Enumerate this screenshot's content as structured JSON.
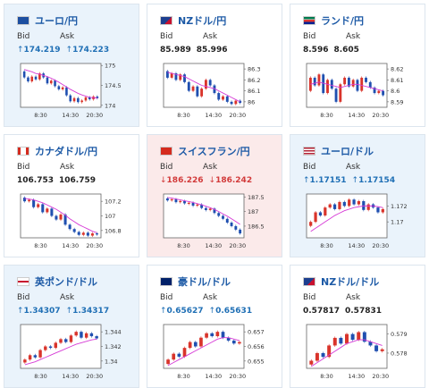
{
  "cards": [
    {
      "title": "ユーロ/円",
      "bid": "174.219",
      "ask": "174.223",
      "bid_dir": "up",
      "ask_dir": "up",
      "bg": "blue",
      "flag": "eu",
      "yticks": [
        "175",
        "174.5",
        "174"
      ],
      "ytick_vals": [
        175,
        174.5,
        174
      ],
      "ylim": [
        173.95,
        175.05
      ],
      "xticks": [
        "8:30",
        "14:30",
        "20:30"
      ],
      "candles": [
        [
          174.85,
          174.7
        ],
        [
          174.7,
          174.6
        ],
        [
          174.6,
          174.72
        ],
        [
          174.72,
          174.65
        ],
        [
          174.65,
          174.8
        ],
        [
          174.8,
          174.7
        ],
        [
          174.7,
          174.55
        ],
        [
          174.55,
          174.62
        ],
        [
          174.62,
          174.48
        ],
        [
          174.48,
          174.4
        ],
        [
          174.4,
          174.45
        ],
        [
          174.45,
          174.25
        ],
        [
          174.25,
          174.1
        ],
        [
          174.1,
          174.18
        ],
        [
          174.18,
          174.08
        ],
        [
          174.08,
          174.12
        ],
        [
          174.12,
          174.2
        ],
        [
          174.2,
          174.15
        ],
        [
          174.15,
          174.22
        ],
        [
          174.22,
          174.18
        ]
      ],
      "ma": [
        174.9,
        174.87,
        174.84,
        174.8,
        174.78,
        174.75,
        174.72,
        174.68,
        174.63,
        174.58,
        174.52,
        174.46,
        174.4,
        174.35,
        174.3,
        174.26,
        174.23,
        174.2,
        174.19,
        174.18
      ]
    },
    {
      "title": "NZドル/円",
      "bid": "85.989",
      "ask": "85.996",
      "bid_dir": "none",
      "ask_dir": "none",
      "bg": "white",
      "flag": "nz",
      "yticks": [
        "86.3",
        "86.2",
        "86.1",
        "86"
      ],
      "ytick_vals": [
        86.3,
        86.2,
        86.1,
        86
      ],
      "ylim": [
        85.95,
        86.35
      ],
      "xticks": [
        "8:30",
        "14:30",
        "20:30"
      ],
      "candles": [
        [
          86.28,
          86.22
        ],
        [
          86.22,
          86.26
        ],
        [
          86.26,
          86.2
        ],
        [
          86.2,
          86.25
        ],
        [
          86.25,
          86.18
        ],
        [
          86.18,
          86.1
        ],
        [
          86.1,
          86.14
        ],
        [
          86.14,
          86.05
        ],
        [
          86.05,
          86.12
        ],
        [
          86.12,
          86.2
        ],
        [
          86.2,
          86.15
        ],
        [
          86.15,
          86.08
        ],
        [
          86.08,
          86.02
        ],
        [
          86.02,
          86.05
        ],
        [
          86.05,
          86.0
        ],
        [
          86.0,
          85.98
        ],
        [
          85.98,
          86.01
        ],
        [
          86.01,
          85.99
        ]
      ],
      "ma": [
        86.27,
        86.26,
        86.25,
        86.24,
        86.23,
        86.21,
        86.19,
        86.17,
        86.15,
        86.14,
        86.13,
        86.12,
        86.1,
        86.08,
        86.06,
        86.04,
        86.02,
        86.0
      ]
    },
    {
      "title": "ランド/円",
      "bid": "8.596",
      "ask": "8.605",
      "bid_dir": "none",
      "ask_dir": "none",
      "bg": "white",
      "flag": "za",
      "yticks": [
        "8.62",
        "8.61",
        "8.6",
        "8.59"
      ],
      "ytick_vals": [
        8.62,
        8.61,
        8.6,
        8.59
      ],
      "ylim": [
        8.585,
        8.625
      ],
      "xticks": [
        "8:30",
        "14:30",
        "20:30"
      ],
      "candles": [
        [
          8.6,
          8.612
        ],
        [
          8.612,
          8.605
        ],
        [
          8.605,
          8.615
        ],
        [
          8.615,
          8.598
        ],
        [
          8.598,
          8.61
        ],
        [
          8.61,
          8.602
        ],
        [
          8.602,
          8.59
        ],
        [
          8.59,
          8.606
        ],
        [
          8.606,
          8.612
        ],
        [
          8.612,
          8.604
        ],
        [
          8.604,
          8.61
        ],
        [
          8.61,
          8.6
        ],
        [
          8.6,
          8.612
        ],
        [
          8.612,
          8.608
        ],
        [
          8.608,
          8.603
        ],
        [
          8.603,
          8.598
        ],
        [
          8.598,
          8.6
        ],
        [
          8.6,
          8.596
        ]
      ],
      "ma": [
        8.606,
        8.607,
        8.608,
        8.607,
        8.606,
        8.605,
        8.604,
        8.603,
        8.604,
        8.605,
        8.606,
        8.606,
        8.605,
        8.604,
        8.603,
        8.602,
        8.601,
        8.6
      ]
    },
    {
      "title": "カナダドル/円",
      "bid": "106.753",
      "ask": "106.759",
      "bid_dir": "none",
      "ask_dir": "none",
      "bg": "white",
      "flag": "ca",
      "yticks": [
        "107.2",
        "107",
        "106.8"
      ],
      "ytick_vals": [
        107.2,
        107,
        106.8
      ],
      "ylim": [
        106.7,
        107.3
      ],
      "xticks": [
        "8:30",
        "14:30",
        "20:30"
      ],
      "candles": [
        [
          107.25,
          107.2
        ],
        [
          107.2,
          107.22
        ],
        [
          107.22,
          107.12
        ],
        [
          107.12,
          107.16
        ],
        [
          107.16,
          107.05
        ],
        [
          107.05,
          107.1
        ],
        [
          107.1,
          107.0
        ],
        [
          107.0,
          106.95
        ],
        [
          106.95,
          107.02
        ],
        [
          107.02,
          106.88
        ],
        [
          106.88,
          106.82
        ],
        [
          106.82,
          106.78
        ],
        [
          106.78,
          106.74
        ],
        [
          106.74,
          106.77
        ],
        [
          106.77,
          106.73
        ],
        [
          106.73,
          106.76
        ],
        [
          106.76,
          106.75
        ]
      ],
      "ma": [
        107.24,
        107.23,
        107.22,
        107.2,
        107.18,
        107.15,
        107.12,
        107.09,
        107.05,
        107.01,
        106.96,
        106.92,
        106.88,
        106.85,
        106.82,
        106.79,
        106.77
      ]
    },
    {
      "title": "スイスフラン/円",
      "bid": "186.226",
      "ask": "186.242",
      "bid_dir": "down",
      "ask_dir": "down",
      "bg": "pink",
      "flag": "ch",
      "yticks": [
        "187.5",
        "187",
        "186.5"
      ],
      "ytick_vals": [
        187.5,
        187,
        186.5
      ],
      "ylim": [
        186.1,
        187.6
      ],
      "xticks": [
        "8:30",
        "14:30",
        "20:30"
      ],
      "candles": [
        [
          187.45,
          187.38
        ],
        [
          187.38,
          187.42
        ],
        [
          187.42,
          187.32
        ],
        [
          187.32,
          187.36
        ],
        [
          187.36,
          187.28
        ],
        [
          187.28,
          187.3
        ],
        [
          187.3,
          187.2
        ],
        [
          187.2,
          187.24
        ],
        [
          187.24,
          187.12
        ],
        [
          187.12,
          187.05
        ],
        [
          187.05,
          187.1
        ],
        [
          187.1,
          186.95
        ],
        [
          186.95,
          186.85
        ],
        [
          186.85,
          186.75
        ],
        [
          186.75,
          186.62
        ],
        [
          186.62,
          186.5
        ],
        [
          186.5,
          186.38
        ],
        [
          186.38,
          186.25
        ]
      ],
      "ma": [
        187.48,
        187.46,
        187.43,
        187.4,
        187.37,
        187.34,
        187.31,
        187.27,
        187.23,
        187.18,
        187.13,
        187.07,
        187.0,
        186.92,
        186.84,
        186.75,
        186.66,
        186.56
      ]
    },
    {
      "title": "ユーロ/ドル",
      "bid": "1.17151",
      "ask": "1.17154",
      "bid_dir": "up",
      "ask_dir": "up",
      "bg": "blue",
      "flag": "us",
      "yticks": [
        "1.172",
        "1.17"
      ],
      "ytick_vals": [
        1.172,
        1.17
      ],
      "ylim": [
        1.168,
        1.1735
      ],
      "xticks": [
        "8:30",
        "14:30",
        "20:30"
      ],
      "candles": [
        [
          1.1695,
          1.17
        ],
        [
          1.17,
          1.1712
        ],
        [
          1.1712,
          1.1708
        ],
        [
          1.1708,
          1.1718
        ],
        [
          1.1718,
          1.1722
        ],
        [
          1.1722,
          1.1716
        ],
        [
          1.1716,
          1.1725
        ],
        [
          1.1725,
          1.172
        ],
        [
          1.172,
          1.1728
        ],
        [
          1.1728,
          1.1722
        ],
        [
          1.1722,
          1.1726
        ],
        [
          1.1726,
          1.1715
        ],
        [
          1.1715,
          1.1722
        ],
        [
          1.1722,
          1.1718
        ],
        [
          1.1718,
          1.1712
        ],
        [
          1.1712,
          1.1716
        ]
      ],
      "ma": [
        1.1688,
        1.1692,
        1.1696,
        1.17,
        1.1704,
        1.1708,
        1.1711,
        1.1714,
        1.1716,
        1.1718,
        1.1719,
        1.172,
        1.172,
        1.172,
        1.1719,
        1.1718
      ]
    },
    {
      "title": "英ポンド/ドル",
      "bid": "1.34307",
      "ask": "1.34317",
      "bid_dir": "up",
      "ask_dir": "up",
      "bg": "blue",
      "flag": "gb",
      "yticks": [
        "1.344",
        "1.342",
        "1.34"
      ],
      "ytick_vals": [
        1.344,
        1.342,
        1.34
      ],
      "ylim": [
        1.339,
        1.345
      ],
      "xticks": [
        "8:30",
        "14:30",
        "20:30"
      ],
      "candles": [
        [
          1.3398,
          1.3402
        ],
        [
          1.3402,
          1.3408
        ],
        [
          1.3408,
          1.3405
        ],
        [
          1.3405,
          1.3415
        ],
        [
          1.3415,
          1.342
        ],
        [
          1.342,
          1.3418
        ],
        [
          1.3418,
          1.3425
        ],
        [
          1.3425,
          1.343
        ],
        [
          1.343,
          1.3426
        ],
        [
          1.3426,
          1.3435
        ],
        [
          1.3435,
          1.344
        ],
        [
          1.344,
          1.3432
        ],
        [
          1.3432,
          1.3438
        ],
        [
          1.3438,
          1.3434
        ],
        [
          1.3434,
          1.3431
        ]
      ],
      "ma": [
        1.3395,
        1.3397,
        1.3399,
        1.3402,
        1.3405,
        1.3408,
        1.3411,
        1.3414,
        1.3417,
        1.342,
        1.3423,
        1.3425,
        1.3427,
        1.3429,
        1.343
      ]
    },
    {
      "title": "豪ドル/ドル",
      "bid": "0.65627",
      "ask": "0.65631",
      "bid_dir": "up",
      "ask_dir": "up",
      "bg": "white",
      "flag": "au",
      "yticks": [
        "0.657",
        "0.656",
        "0.655"
      ],
      "ytick_vals": [
        0.657,
        0.656,
        0.655
      ],
      "ylim": [
        0.6545,
        0.6575
      ],
      "xticks": [
        "8:30",
        "14:30",
        "20:30"
      ],
      "candles": [
        [
          0.6548,
          0.6551
        ],
        [
          0.6551,
          0.6555
        ],
        [
          0.6555,
          0.6553
        ],
        [
          0.6553,
          0.6559
        ],
        [
          0.6559,
          0.6563
        ],
        [
          0.6563,
          0.656
        ],
        [
          0.656,
          0.6566
        ],
        [
          0.6566,
          0.6569
        ],
        [
          0.6569,
          0.6567
        ],
        [
          0.6567,
          0.657
        ],
        [
          0.657,
          0.6566
        ],
        [
          0.6566,
          0.6564
        ],
        [
          0.6564,
          0.6562
        ],
        [
          0.6562,
          0.6563
        ]
      ],
      "ma": [
        0.6547,
        0.6549,
        0.6551,
        0.6553,
        0.6555,
        0.6557,
        0.6559,
        0.6561,
        0.6563,
        0.6565,
        0.6566,
        0.6566,
        0.6565,
        0.6564
      ]
    },
    {
      "title": "NZドル/ドル",
      "bid": "0.57817",
      "ask": "0.57831",
      "bid_dir": "none",
      "ask_dir": "none",
      "bg": "white",
      "flag": "nz",
      "yticks": [
        "0.579",
        "0.578"
      ],
      "ytick_vals": [
        0.579,
        0.578
      ],
      "ylim": [
        0.5772,
        0.5795
      ],
      "xticks": [
        "8:30",
        "14:30",
        "20:30"
      ],
      "candles": [
        [
          0.5774,
          0.5776
        ],
        [
          0.5776,
          0.578
        ],
        [
          0.578,
          0.5778
        ],
        [
          0.5778,
          0.5784
        ],
        [
          0.5784,
          0.5788
        ],
        [
          0.5788,
          0.5785
        ],
        [
          0.5785,
          0.579
        ],
        [
          0.579,
          0.5787
        ],
        [
          0.5787,
          0.5791
        ],
        [
          0.5791,
          0.5786
        ],
        [
          0.5786,
          0.5784
        ],
        [
          0.5784,
          0.5781
        ],
        [
          0.5781,
          0.5782
        ]
      ],
      "ma": [
        0.5773,
        0.5775,
        0.5777,
        0.5779,
        0.5781,
        0.5783,
        0.5785,
        0.5786,
        0.5787,
        0.5787,
        0.5786,
        0.5785,
        0.5784
      ]
    }
  ],
  "labels": {
    "bid": "Bid",
    "ask": "Ask"
  },
  "colors": {
    "up_candle": "#d9342b",
    "down_candle": "#1f4fb0",
    "ma_line": "#d63bd6",
    "axis": "#555555",
    "title": "#1d5aa6"
  }
}
